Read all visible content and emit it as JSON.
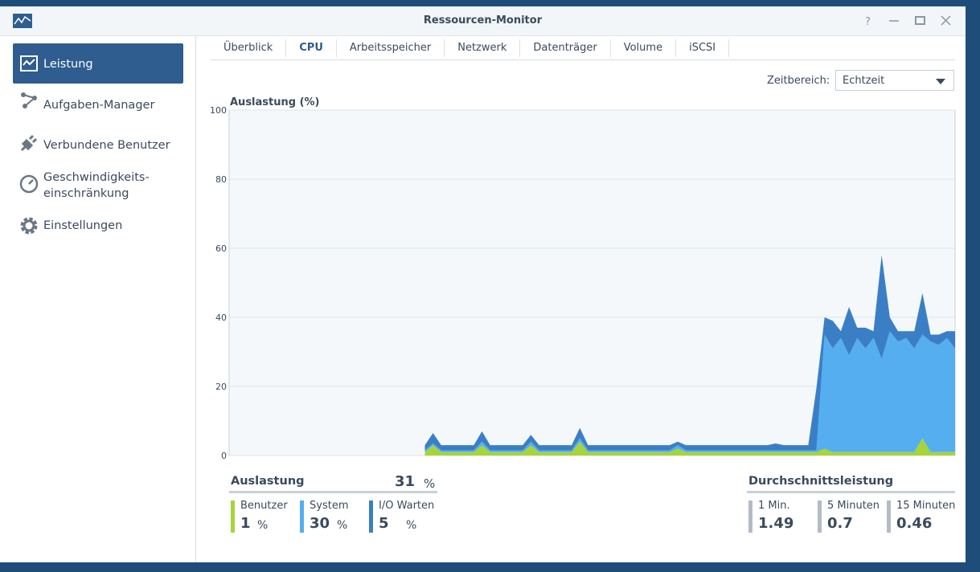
{
  "window": {
    "title": "Ressourcen-Monitor"
  },
  "sidebar": [
    "Leistung",
    "Aufgaben-Manager",
    "Verbundene Benutzer",
    "Geschwindigkeits-\neinschränkung",
    "Einstellungen"
  ],
  "tabs": [
    "Überblick",
    "CPU",
    "Arbeitsspeicher",
    "Netzwerk",
    "Datenträger",
    "Volume",
    "iSCSI"
  ],
  "time_range": {
    "label": "Zeitbereich:",
    "value": "Echtzeit"
  },
  "chart_data": {
    "type": "stacked_area",
    "y_label": "Auslastung (%)",
    "ylim": [
      0,
      100
    ],
    "yticks": [
      0,
      20,
      40,
      60,
      80,
      100
    ],
    "grid": true,
    "categories": [
      null,
      null,
      null,
      null,
      null,
      null,
      null,
      null,
      null,
      null,
      null,
      null,
      null,
      null,
      null,
      null,
      null,
      null,
      null,
      null,
      null,
      null,
      null,
      null,
      null,
      null,
      null,
      null,
      null,
      null,
      null,
      null,
      null,
      null,
      null,
      null,
      null,
      null,
      null,
      null,
      null,
      null,
      null,
      null,
      null,
      null,
      null,
      null,
      null,
      null,
      null,
      null,
      null,
      null,
      null,
      null,
      null,
      null,
      null,
      null,
      null,
      null,
      null,
      null,
      null,
      null,
      null,
      null,
      null,
      null,
      null,
      null,
      null,
      null,
      null,
      null,
      null,
      null,
      null,
      null,
      null,
      null,
      null,
      null,
      null,
      null,
      null,
      null,
      null,
      null
    ],
    "series": [
      {
        "name": "Benutzer",
        "color": "#a6d43a",
        "values": [
          null,
          null,
          null,
          null,
          null,
          null,
          null,
          null,
          null,
          null,
          null,
          null,
          null,
          null,
          null,
          null,
          null,
          null,
          null,
          null,
          null,
          null,
          null,
          null,
          1,
          3,
          1,
          1,
          1,
          1,
          1,
          3,
          1,
          1,
          1,
          1,
          1,
          3,
          1,
          1,
          1,
          1,
          1,
          4,
          1,
          1,
          1,
          1,
          1,
          1,
          1,
          1,
          1,
          1,
          1,
          2,
          1,
          1,
          1,
          1,
          1,
          1,
          1,
          1,
          1,
          1,
          1,
          1,
          1,
          1,
          1,
          1,
          1,
          2,
          1,
          1,
          1,
          1,
          1,
          1,
          1,
          1,
          1,
          1,
          1,
          5,
          1,
          1,
          1,
          1
        ]
      },
      {
        "name": "System",
        "color": "#55aef0",
        "values": [
          null,
          null,
          null,
          null,
          null,
          null,
          null,
          null,
          null,
          null,
          null,
          null,
          null,
          null,
          null,
          null,
          null,
          null,
          null,
          null,
          null,
          null,
          null,
          null,
          0.5,
          0.5,
          0.5,
          0.5,
          0.5,
          0.5,
          0.5,
          1,
          0.5,
          0.5,
          0.5,
          0.5,
          0.5,
          1,
          0.5,
          0.5,
          0.5,
          0.5,
          0.5,
          1,
          0.5,
          0.5,
          0.5,
          0.5,
          0.5,
          0.5,
          0.5,
          0.5,
          0.5,
          0.5,
          0.5,
          1,
          0.5,
          0.5,
          0.5,
          0.5,
          0.5,
          0.5,
          0.5,
          0.5,
          0.5,
          0.5,
          0.5,
          0.5,
          0.5,
          0.5,
          0.5,
          0.5,
          0.5,
          33,
          30,
          33,
          28,
          33,
          30,
          33,
          27,
          35,
          32,
          33,
          30,
          30,
          32,
          31,
          33,
          30
        ]
      },
      {
        "name": "I/O Warten",
        "color": "#3a7fc6",
        "values": [
          null,
          null,
          null,
          null,
          null,
          null,
          null,
          null,
          null,
          null,
          null,
          null,
          null,
          null,
          null,
          null,
          null,
          null,
          null,
          null,
          null,
          null,
          null,
          null,
          1.5,
          3,
          1.5,
          1.5,
          1.5,
          1.5,
          1.5,
          3,
          1.5,
          1.5,
          1.5,
          1.5,
          1.5,
          2,
          1.5,
          1.5,
          1.5,
          1.5,
          1.5,
          3,
          1.5,
          1.5,
          1.5,
          1.5,
          1.5,
          1.5,
          1.5,
          1.5,
          1.5,
          1.5,
          1.5,
          1,
          1.5,
          1.5,
          1.5,
          1.5,
          1.5,
          1.5,
          1.5,
          1.5,
          1.5,
          1.5,
          1.5,
          2,
          1.5,
          1.5,
          1.5,
          1.5,
          18,
          5,
          8,
          2,
          14,
          3,
          6,
          2,
          30,
          4,
          3,
          2,
          5,
          12,
          2,
          3,
          2,
          5
        ]
      }
    ]
  },
  "summary": {
    "title": "Auslastung",
    "total": 31,
    "unit": "%",
    "items": [
      {
        "name": "Benutzer",
        "value": 1
      },
      {
        "name": "System",
        "value": 30
      },
      {
        "name": "I/O Warten",
        "value": 5
      }
    ]
  },
  "load": {
    "title": "Durchschnittsleistung",
    "items": [
      {
        "name": "1 Min.",
        "value": 1.49
      },
      {
        "name": "5 Minuten",
        "value": 0.7
      },
      {
        "name": "15 Minuten",
        "value": 0.46
      }
    ]
  }
}
